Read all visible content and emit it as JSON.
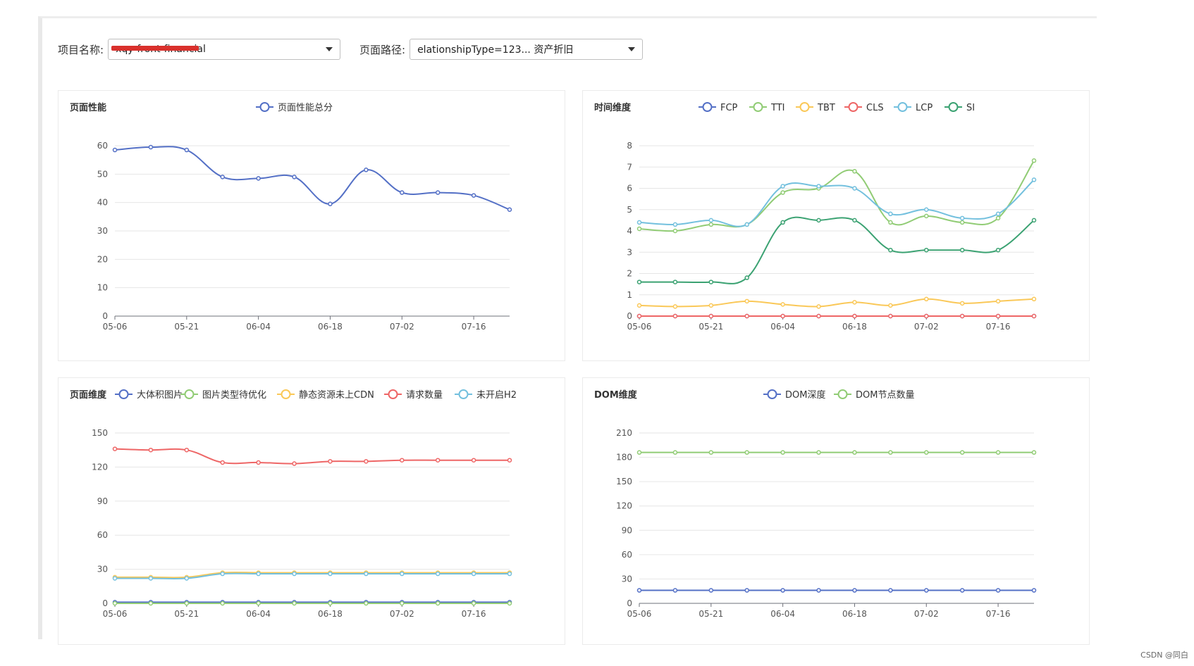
{
  "filters": {
    "project_label": "项目名称:",
    "project_value": "xqy-front-financial",
    "path_label": "页面路径:",
    "path_value": "elationshipType=123... 资产折旧"
  },
  "watermark": "CSDN @同白",
  "colors": {
    "blue": "#5470c6",
    "green": "#91cc75",
    "yellow": "#fac858",
    "red": "#ee6666",
    "lightblue": "#73c0de",
    "darkgreen": "#3ba272"
  },
  "chart_data": [
    {
      "id": "perf",
      "type": "line",
      "title": "页面性能",
      "x": [
        "05-06",
        "05-13",
        "05-21",
        "05-27",
        "06-04",
        "06-11",
        "06-18",
        "06-25",
        "07-02",
        "07-09",
        "07-16",
        "07-23"
      ],
      "x_tick_labels": [
        "05-06",
        "05-21",
        "06-04",
        "06-18",
        "07-02",
        "07-16"
      ],
      "ylim": [
        0,
        60
      ],
      "yticks": [
        0,
        10,
        20,
        30,
        40,
        50,
        60
      ],
      "series": [
        {
          "name": "页面性能总分",
          "color": "#5470c6",
          "values": [
            58.5,
            59.5,
            58.5,
            49,
            48.5,
            49,
            39.5,
            51.5,
            43.5,
            43.5,
            42.5,
            37.5
          ]
        }
      ]
    },
    {
      "id": "time",
      "type": "line",
      "title": "时间维度",
      "x": [
        "05-06",
        "05-13",
        "05-21",
        "05-27",
        "06-04",
        "06-11",
        "06-18",
        "06-25",
        "07-02",
        "07-09",
        "07-16",
        "07-23"
      ],
      "x_tick_labels": [
        "05-06",
        "05-21",
        "06-04",
        "06-18",
        "07-02",
        "07-16"
      ],
      "ylim": [
        0,
        8
      ],
      "yticks": [
        0,
        1,
        2,
        3,
        4,
        5,
        6,
        7,
        8
      ],
      "series": [
        {
          "name": "FCP",
          "color": "#5470c6",
          "values": [
            0,
            0,
            0,
            0,
            0,
            0,
            0,
            0,
            0,
            0,
            0,
            0
          ]
        },
        {
          "name": "TTI",
          "color": "#91cc75",
          "values": [
            4.1,
            4.0,
            4.3,
            4.3,
            5.8,
            6.0,
            6.8,
            4.4,
            4.7,
            4.4,
            4.6,
            7.3
          ]
        },
        {
          "name": "TBT",
          "color": "#fac858",
          "values": [
            0.5,
            0.45,
            0.5,
            0.7,
            0.55,
            0.45,
            0.65,
            0.5,
            0.8,
            0.6,
            0.7,
            0.8
          ]
        },
        {
          "name": "CLS",
          "color": "#ee6666",
          "values": [
            0,
            0,
            0,
            0,
            0,
            0,
            0,
            0,
            0,
            0,
            0,
            0
          ]
        },
        {
          "name": "LCP",
          "color": "#73c0de",
          "values": [
            4.4,
            4.3,
            4.5,
            4.3,
            6.1,
            6.1,
            6.0,
            4.8,
            5.0,
            4.6,
            4.8,
            6.4
          ]
        },
        {
          "name": "SI",
          "color": "#3ba272",
          "values": [
            1.6,
            1.6,
            1.6,
            1.8,
            4.4,
            4.5,
            4.5,
            3.1,
            3.1,
            3.1,
            3.1,
            4.5
          ]
        }
      ]
    },
    {
      "id": "page",
      "type": "line",
      "title": "页面维度",
      "x": [
        "05-06",
        "05-13",
        "05-21",
        "05-27",
        "06-04",
        "06-11",
        "06-18",
        "06-25",
        "07-02",
        "07-09",
        "07-16",
        "07-23"
      ],
      "x_tick_labels": [
        "05-06",
        "05-21",
        "06-04",
        "06-18",
        "07-02",
        "07-16"
      ],
      "ylim": [
        0,
        150
      ],
      "yticks": [
        0,
        30,
        60,
        90,
        120,
        150
      ],
      "series": [
        {
          "name": "大体积图片",
          "color": "#5470c6",
          "values": [
            1,
            1,
            1,
            1,
            1,
            1,
            1,
            1,
            1,
            1,
            1,
            1
          ]
        },
        {
          "name": "图片类型待优化",
          "color": "#91cc75",
          "values": [
            0,
            0,
            0,
            0,
            0,
            0,
            0,
            0,
            0,
            0,
            0,
            0
          ]
        },
        {
          "name": "静态资源未上CDN",
          "color": "#fac858",
          "values": [
            23,
            23,
            23,
            27,
            27,
            27,
            27,
            27,
            27,
            27,
            27,
            27
          ]
        },
        {
          "name": "请求数量",
          "color": "#ee6666",
          "values": [
            136,
            135,
            135,
            124,
            124,
            123,
            125,
            125,
            126,
            126,
            126,
            126
          ]
        },
        {
          "name": "未开启H2",
          "color": "#73c0de",
          "values": [
            22,
            22,
            22,
            26,
            26,
            26,
            26,
            26,
            26,
            26,
            26,
            26
          ]
        }
      ]
    },
    {
      "id": "dom",
      "type": "line",
      "title": "DOM维度",
      "x": [
        "05-06",
        "05-13",
        "05-21",
        "05-27",
        "06-04",
        "06-11",
        "06-18",
        "06-25",
        "07-02",
        "07-09",
        "07-16",
        "07-23"
      ],
      "x_tick_labels": [
        "05-06",
        "05-21",
        "06-04",
        "06-18",
        "07-02",
        "07-16"
      ],
      "ylim": [
        0,
        210
      ],
      "yticks": [
        0,
        30,
        60,
        90,
        120,
        150,
        180,
        210
      ],
      "series": [
        {
          "name": "DOM深度",
          "color": "#5470c6",
          "values": [
            16,
            16,
            16,
            16,
            16,
            16,
            16,
            16,
            16,
            16,
            16,
            16
          ]
        },
        {
          "name": "DOM节点数量",
          "color": "#91cc75",
          "values": [
            186,
            186,
            186,
            186,
            186,
            186,
            186,
            186,
            186,
            186,
            186,
            186
          ]
        }
      ]
    }
  ]
}
